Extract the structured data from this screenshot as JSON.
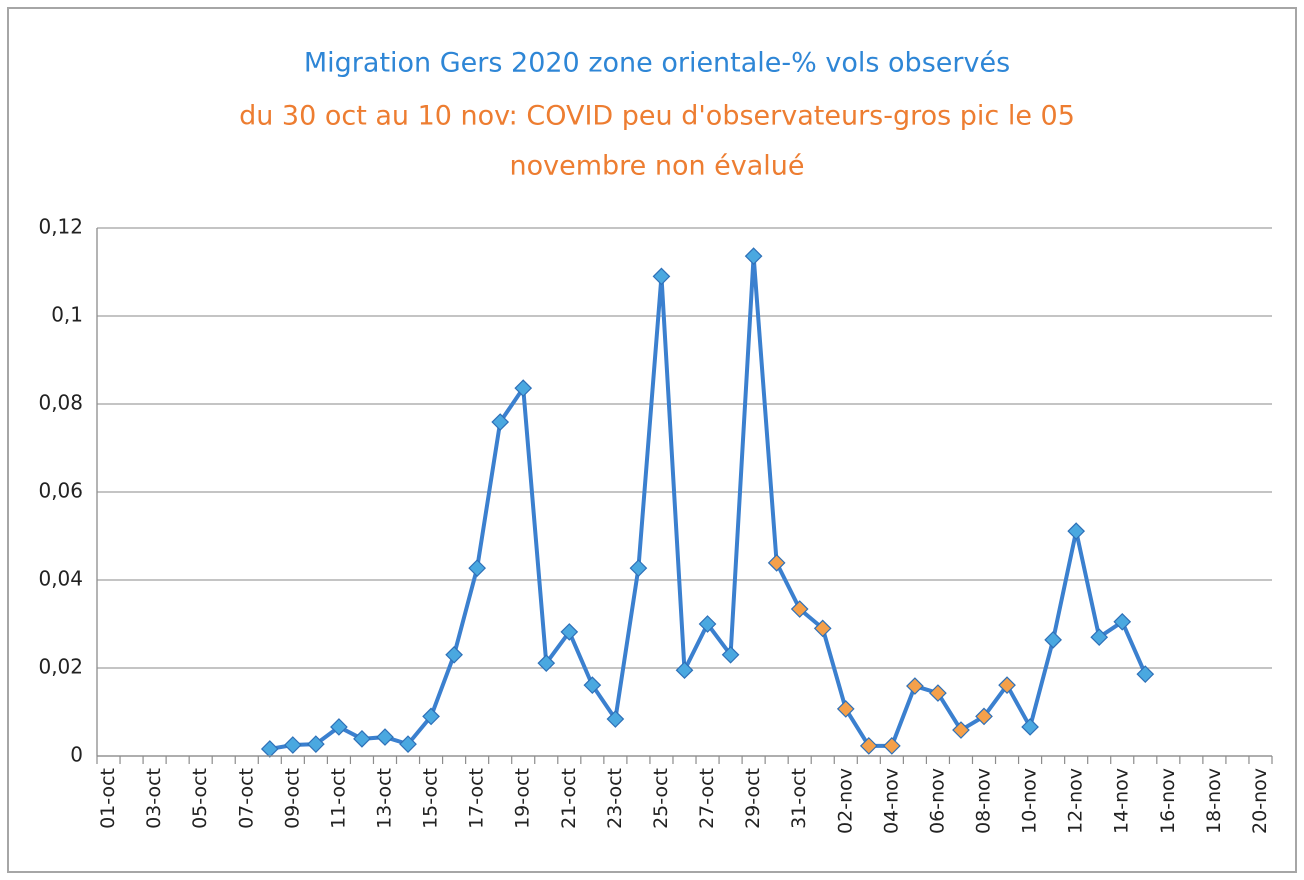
{
  "chart_data": {
    "type": "line",
    "title": "Migration Gers 2020 zone orientale-% vols observés",
    "subtitle": [
      "du 30 oct au 10 nov: COVID peu d'observateurs-gros pic le 05",
      "novembre non évalué"
    ],
    "title_color": "#2e86d6",
    "subtitle_color": "#ed7d31",
    "categories": [
      "01-oct",
      null,
      "03-oct",
      null,
      "05-oct",
      null,
      "07-oct",
      null,
      "09-oct",
      null,
      "11-oct",
      null,
      "13-oct",
      null,
      "15-oct",
      null,
      "17-oct",
      null,
      "19-oct",
      null,
      "21-oct",
      null,
      "23-oct",
      null,
      "25-oct",
      null,
      "27-oct",
      null,
      "29-oct",
      null,
      "31-oct",
      null,
      "02-nov",
      null,
      "04-nov",
      null,
      "06-nov",
      null,
      "08-nov",
      null,
      "10-nov",
      null,
      "12-nov",
      null,
      "14-nov",
      null,
      "16-nov",
      null,
      "18-nov",
      null,
      "20-nov"
    ],
    "series": [
      {
        "color": "#3b80cf",
        "values": [
          null,
          null,
          null,
          null,
          null,
          null,
          null,
          0.0016,
          0.0025,
          0.0027,
          0.0066,
          0.0039,
          0.0043,
          0.0027,
          0.009,
          0.023,
          0.0427,
          0.0759,
          0.0836,
          0.0211,
          0.0282,
          0.0161,
          0.0084,
          0.0427,
          0.109,
          0.0195,
          0.03,
          0.023,
          0.1136,
          0.0439,
          0.0334,
          0.029,
          0.0107,
          0.0023,
          0.0023,
          0.0159,
          0.0143,
          0.0059,
          0.009,
          0.0161,
          0.0066,
          0.0264,
          0.0511,
          0.027,
          0.0305,
          0.0186,
          null,
          null,
          null,
          null,
          null
        ],
        "marker_colors": [
          null,
          null,
          null,
          null,
          null,
          null,
          null,
          "#4aa8e0",
          "#4aa8e0",
          "#4aa8e0",
          "#4aa8e0",
          "#4aa8e0",
          "#4aa8e0",
          "#4aa8e0",
          "#4aa8e0",
          "#4aa8e0",
          "#4aa8e0",
          "#4aa8e0",
          "#4aa8e0",
          "#4aa8e0",
          "#4aa8e0",
          "#4aa8e0",
          "#4aa8e0",
          "#4aa8e0",
          "#4aa8e0",
          "#4aa8e0",
          "#4aa8e0",
          "#4aa8e0",
          "#4aa8e0",
          "#f5a04a",
          "#f5a04a",
          "#f5a04a",
          "#f5a04a",
          "#f5a04a",
          "#f5a04a",
          "#f5a04a",
          "#f5a04a",
          "#f5a04a",
          "#f5a04a",
          "#f5a04a",
          "#4aa8e0",
          "#4aa8e0",
          "#4aa8e0",
          "#4aa8e0",
          "#4aa8e0",
          "#4aa8e0",
          null,
          null,
          null,
          null,
          null
        ]
      }
    ],
    "ylim": [
      0,
      0.12
    ],
    "yticks": [
      0,
      {
        "value": 0.02,
        "label": "0,02"
      },
      {
        "value": 0.04,
        "label": "0,04"
      },
      {
        "value": 0.06,
        "label": "0,06"
      },
      {
        "value": 0.08,
        "label": "0,08"
      },
      {
        "value": 0.1,
        "label": "0,1"
      },
      {
        "value": 0.12,
        "label": "0,12"
      }
    ],
    "grid": true
  }
}
